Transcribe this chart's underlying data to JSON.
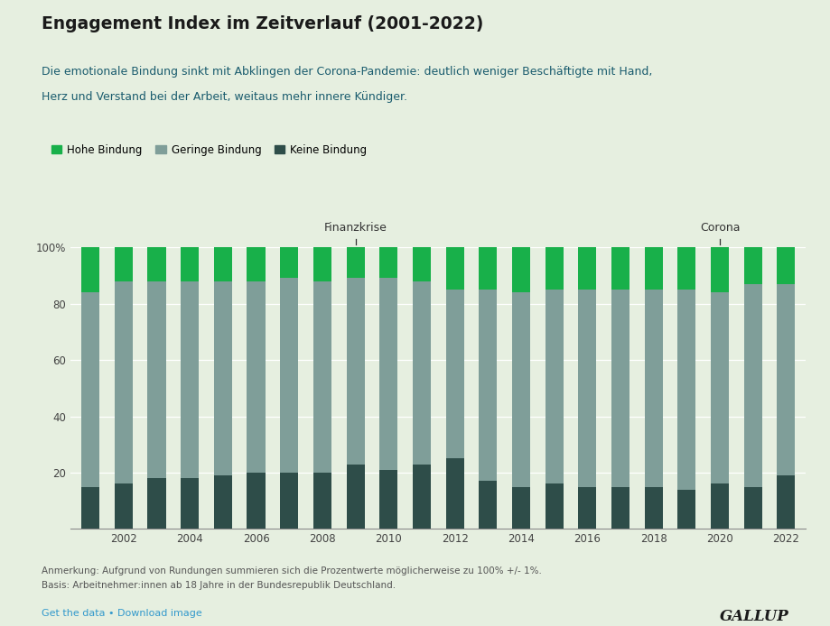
{
  "title": "Engagement Index im Zeitverlauf (2001-2022)",
  "subtitle_line1": "Die emotionale Bindung sinkt mit Abklingen der Corona-Pandemie: deutlich weniger Beschäftigte mit Hand,",
  "subtitle_line2": "Herz und Verstand bei der Arbeit, weitaus mehr innere Kündiger.",
  "years": [
    2001,
    2002,
    2003,
    2004,
    2005,
    2006,
    2007,
    2008,
    2009,
    2010,
    2011,
    2012,
    2013,
    2014,
    2015,
    2016,
    2017,
    2018,
    2019,
    2020,
    2021,
    2022
  ],
  "keine_bindung": [
    15,
    16,
    18,
    18,
    19,
    20,
    20,
    20,
    23,
    21,
    23,
    25,
    17,
    15,
    16,
    15,
    15,
    15,
    14,
    16,
    15,
    19
  ],
  "geringe_bindung": [
    69,
    72,
    70,
    70,
    69,
    68,
    69,
    68,
    66,
    68,
    65,
    60,
    68,
    69,
    69,
    70,
    70,
    70,
    71,
    68,
    72,
    68
  ],
  "hohe_bindung": [
    16,
    12,
    12,
    12,
    12,
    12,
    11,
    12,
    11,
    11,
    12,
    15,
    15,
    16,
    15,
    15,
    15,
    15,
    15,
    16,
    13,
    13
  ],
  "color_keine": "#2e4d49",
  "color_geringe": "#7f9e99",
  "color_hohe": "#18b04a",
  "color_bg": "#e6efe0",
  "color_title": "#1a1a1a",
  "color_subtitle": "#1a5c6e",
  "color_annotation": "#333333",
  "color_footer": "#555555",
  "color_link": "#3399cc",
  "color_gallup": "#1a1a1a",
  "annotation_finanzkrise_year": 2009,
  "annotation_corona_year": 2020,
  "annotation_finanzkrise_label": "Finanzkrise",
  "annotation_corona_label": "Corona",
  "legend_labels": [
    "Hohe Bindung",
    "Geringe Bindung",
    "Keine Bindung"
  ],
  "footer_note": "Anmerkung: Aufgrund von Rundungen summieren sich die Prozentwerte möglicherweise zu 100% +/- 1%.",
  "footer_basis": "Basis: Arbeitnehmer:innen ab 18 Jahre in der Bundesrepublik Deutschland.",
  "footer_data": "Get the data • Download image",
  "footer_gallup": "GALLUP",
  "ytick_labels": [
    "",
    "20",
    "40",
    "60",
    "80",
    "100%"
  ]
}
